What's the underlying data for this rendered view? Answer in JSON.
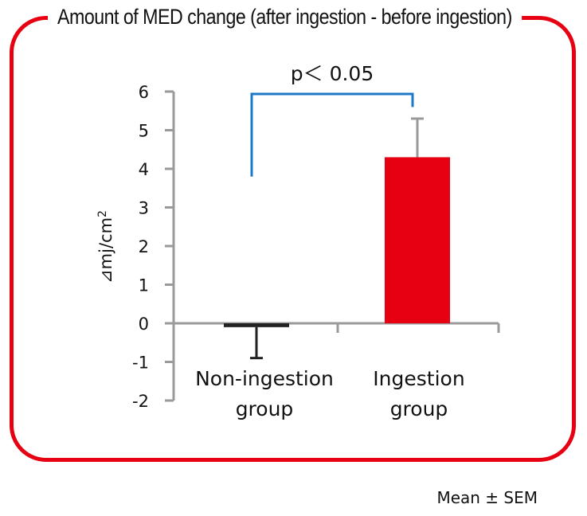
{
  "title": "Amount of MED change (after ingestion - before ingestion)",
  "footnote": "Mean ± SEM",
  "colors": {
    "frame": "#e60012",
    "bar_ingestion": "#e60012",
    "bar_non": "#222222",
    "axis": "#9a9a9a",
    "bracket": "#1e78c8"
  },
  "chart_data": {
    "type": "bar",
    "categories": [
      "Non-ingestion group",
      "Ingestion group"
    ],
    "category_lines": [
      [
        "Non-ingestion",
        "group"
      ],
      [
        "Ingestion",
        "group"
      ]
    ],
    "values": [
      -0.1,
      4.3
    ],
    "error_bars": [
      {
        "direction": "down",
        "value": 0.8
      },
      {
        "direction": "up",
        "value": 1.0
      }
    ],
    "ylabel": "⊿mj/cm²",
    "ylabel_main": "⊿mj/cm",
    "ylabel_sup": "2",
    "ylim": [
      -2,
      6
    ],
    "yticks": [
      "-2",
      "-1",
      "0",
      "1",
      "2",
      "3",
      "4",
      "5",
      "6"
    ],
    "significance": {
      "label": "p＜ 0.05",
      "between": [
        0,
        1
      ]
    },
    "grid": false,
    "legend": "none"
  }
}
